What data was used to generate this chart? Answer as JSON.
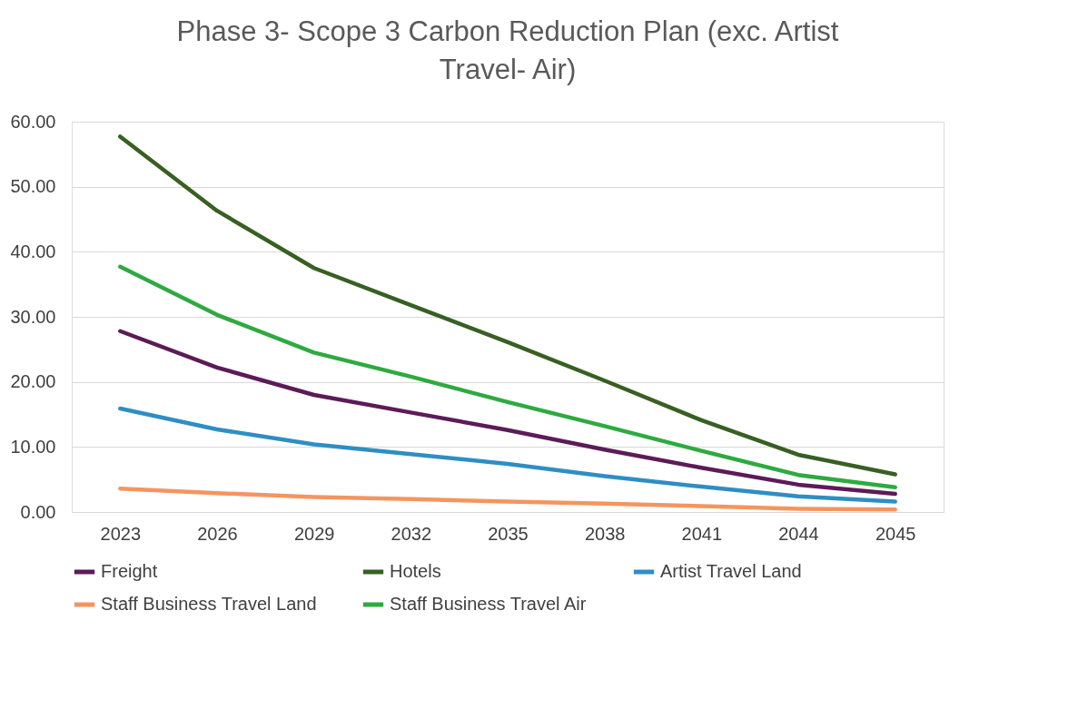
{
  "chart_data": {
    "type": "line",
    "title": "Phase 3- Scope 3 Carbon Reduction Plan (exc. Artist Travel- Air)",
    "categories": [
      "2023",
      "2026",
      "2029",
      "2032",
      "2035",
      "2038",
      "2041",
      "2044",
      "2045"
    ],
    "series": [
      {
        "name": "Freight",
        "color": "#5c1b57",
        "values": [
          27.8,
          22.2,
          18.0,
          15.3,
          12.6,
          9.6,
          6.8,
          4.2,
          2.8
        ]
      },
      {
        "name": "Hotels",
        "color": "#376022",
        "values": [
          57.7,
          46.3,
          37.5,
          31.8,
          26.1,
          20.2,
          14.1,
          8.8,
          5.8
        ]
      },
      {
        "name": "Artist Travel Land",
        "color": "#2e8ec4",
        "values": [
          15.9,
          12.7,
          10.4,
          8.9,
          7.4,
          5.5,
          3.9,
          2.4,
          1.6
        ]
      },
      {
        "name": "Staff Business Travel Land",
        "color": "#f4955f",
        "values": [
          3.6,
          2.9,
          2.3,
          2.0,
          1.6,
          1.3,
          0.9,
          0.5,
          0.4
        ]
      },
      {
        "name": "Staff Business Travel Air",
        "color": "#2eaa3f",
        "values": [
          37.7,
          30.3,
          24.5,
          20.8,
          16.9,
          13.2,
          9.4,
          5.7,
          3.8
        ]
      }
    ],
    "ylim": [
      0,
      60
    ],
    "yticks": [
      {
        "value": 0,
        "label": "0.00"
      },
      {
        "value": 10,
        "label": "10.00"
      },
      {
        "value": 20,
        "label": "20.00"
      },
      {
        "value": 30,
        "label": "30.00"
      },
      {
        "value": 40,
        "label": "40.00"
      },
      {
        "value": 50,
        "label": "50.00"
      },
      {
        "value": 60,
        "label": "60.00"
      }
    ],
    "grid": "y",
    "legend": "bottom",
    "marker": "none",
    "line_style": "solid"
  }
}
